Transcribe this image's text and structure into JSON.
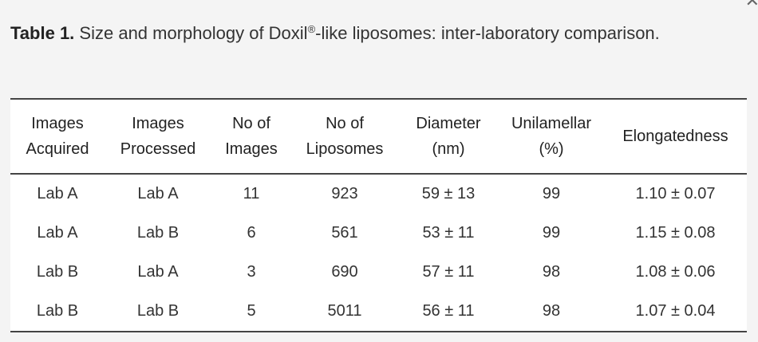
{
  "caption": {
    "label": "Table 1.",
    "text_before": "Size and morphology of Doxil",
    "superscript": "®",
    "text_after": "-like liposomes: inter-laboratory comparison."
  },
  "close_icon": "close-icon",
  "table": {
    "headers": [
      [
        "Images",
        "Acquired"
      ],
      [
        "Images",
        "Processed"
      ],
      [
        "No of",
        "Images"
      ],
      [
        "No of",
        "Liposomes"
      ],
      [
        "Diameter",
        "(nm)"
      ],
      [
        "Unilamellar",
        "(%)"
      ],
      [
        "Elongatedness",
        ""
      ]
    ],
    "rows": [
      [
        "Lab A",
        "Lab A",
        "11",
        "923",
        "59 ± 13",
        "99",
        "1.10 ± 0.07"
      ],
      [
        "Lab A",
        "Lab B",
        "6",
        "561",
        "53 ± 11",
        "99",
        "1.15 ± 0.08"
      ],
      [
        "Lab B",
        "Lab A",
        "3",
        "690",
        "57 ± 11",
        "98",
        "1.08 ± 0.06"
      ],
      [
        "Lab B",
        "Lab B",
        "5",
        "5011",
        "56 ± 11",
        "98",
        "1.07 ± 0.04"
      ]
    ]
  }
}
